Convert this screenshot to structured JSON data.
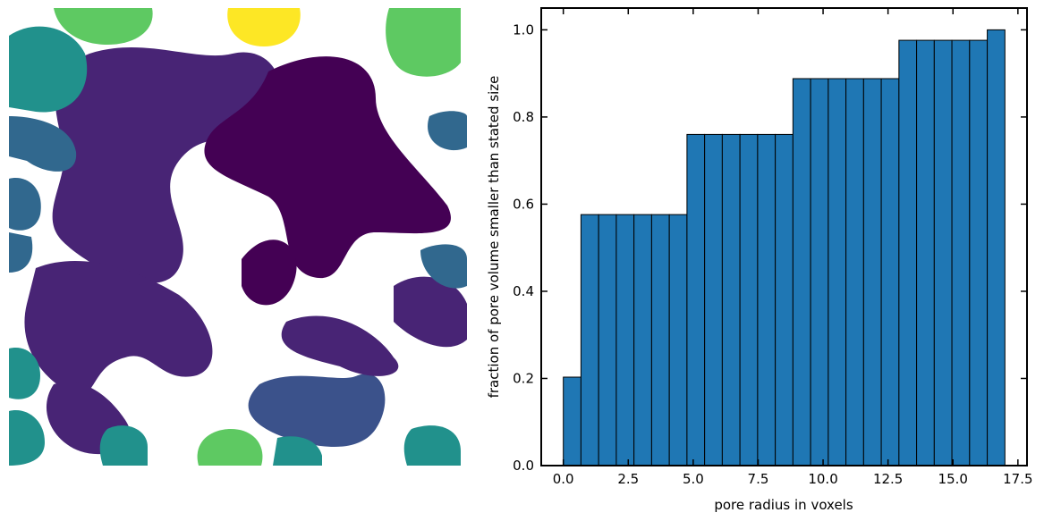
{
  "chart_data": {
    "type": "histogram",
    "xlabel": "pore radius in voxels",
    "ylabel": "fraction of pore volume smaller than stated size",
    "bins": [
      0,
      0.68,
      1.36,
      2.04,
      2.72,
      3.4,
      4.08,
      4.76,
      5.44,
      6.12,
      6.8,
      7.48,
      8.16,
      8.84,
      9.52,
      10.2,
      10.88,
      11.56,
      12.24,
      12.92,
      13.6,
      14.28,
      14.96,
      15.64,
      16.32,
      17
    ],
    "values": [
      0.203,
      0.576,
      0.576,
      0.576,
      0.576,
      0.576,
      0.576,
      0.76,
      0.76,
      0.76,
      0.76,
      0.76,
      0.76,
      0.888,
      0.888,
      0.888,
      0.888,
      0.888,
      0.888,
      0.976,
      0.976,
      0.976,
      0.976,
      0.976,
      1.0
    ],
    "color": "#1f77b4",
    "xlim": [
      -0.85,
      17.85
    ],
    "ylim": [
      0,
      1.05
    ],
    "xticks": [
      {
        "value": 0,
        "label": "0.0"
      },
      2.5,
      {
        "value": 5,
        "label": "5.0"
      },
      7.5,
      {
        "value": 10,
        "label": "10.0"
      },
      12.5,
      {
        "value": 15,
        "label": "15.0"
      },
      17.5
    ],
    "yticks": [
      {
        "value": 0,
        "label": "0.0"
      },
      0.2,
      0.4,
      0.6,
      0.8,
      {
        "value": 1,
        "label": "1.0"
      }
    ]
  }
}
